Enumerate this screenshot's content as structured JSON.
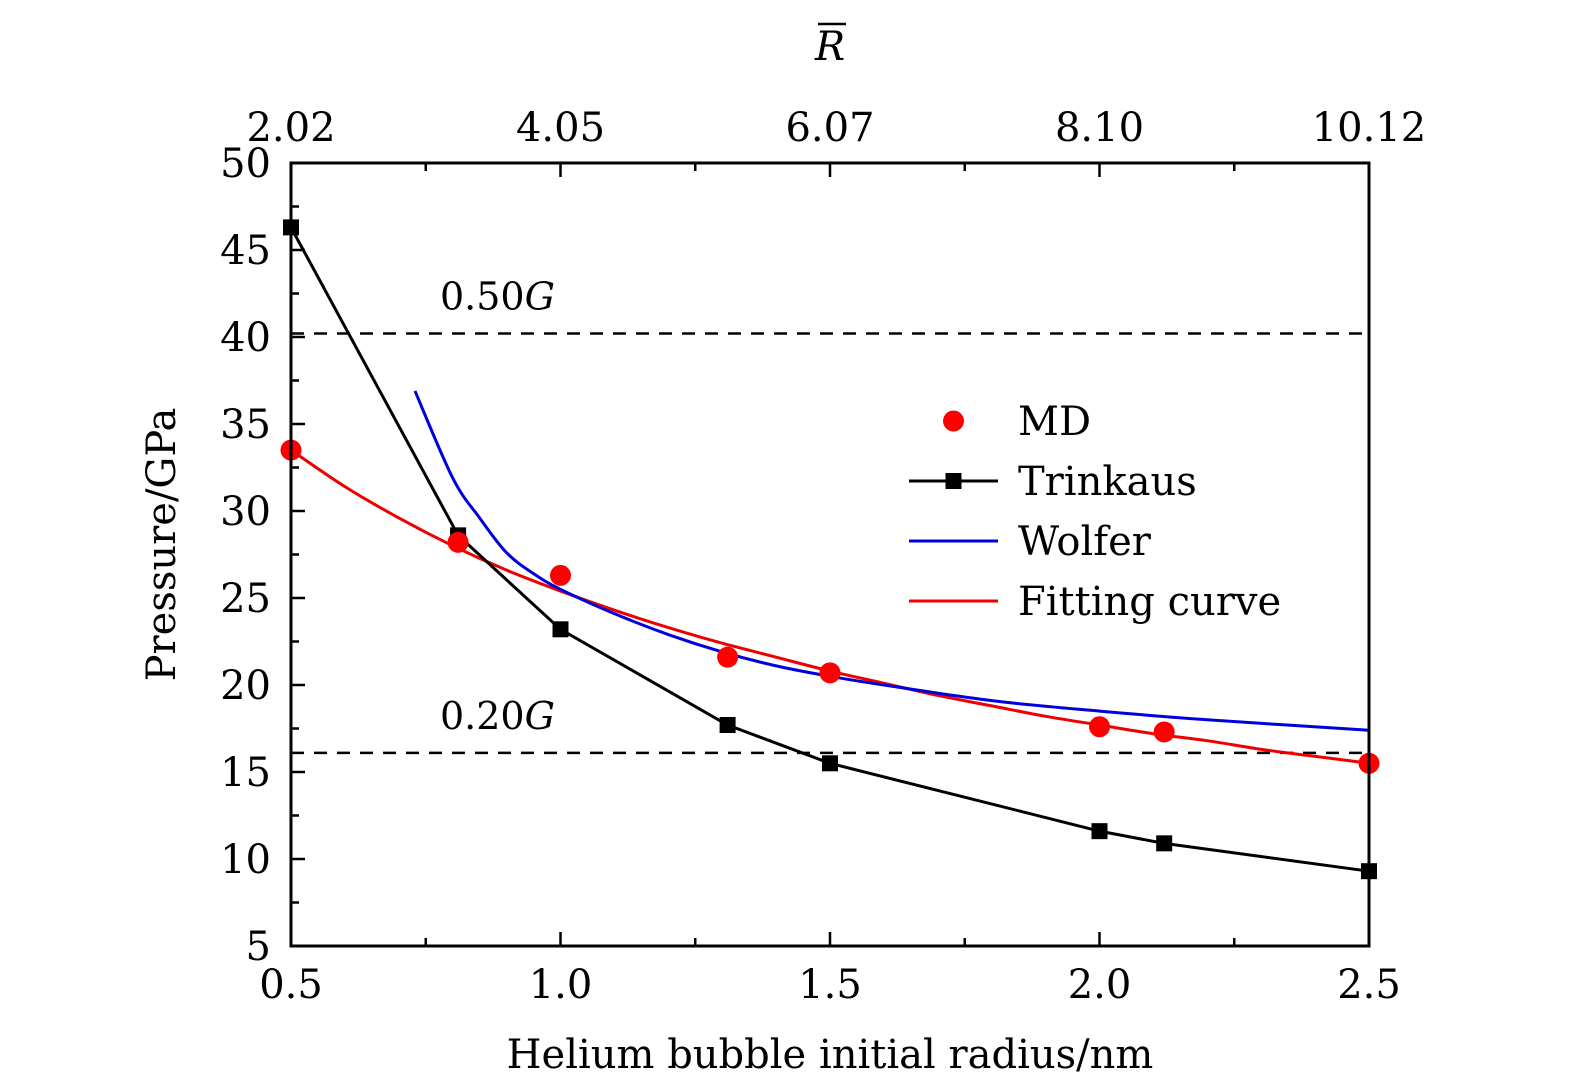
{
  "chart_data": {
    "type": "line",
    "title": "",
    "xlabel": "Helium bubble initial radius/nm",
    "ylabel": "Pressure/GPa",
    "top_xlabel": "R̄",
    "xlim": [
      0.5,
      2.5
    ],
    "ylim": [
      5,
      50
    ],
    "grid": false,
    "x_ticks": [
      0.5,
      1.0,
      1.5,
      2.0,
      2.5
    ],
    "x_tick_labels": [
      "0.5",
      "1.0",
      "1.5",
      "2.0",
      "2.5"
    ],
    "x_minor_ticks": [
      0.75,
      1.25,
      1.75,
      2.25
    ],
    "y_ticks": [
      5,
      10,
      15,
      20,
      25,
      30,
      35,
      40,
      45,
      50
    ],
    "y_tick_labels": [
      "5",
      "10",
      "15",
      "20",
      "25",
      "30",
      "35",
      "40",
      "45",
      "50"
    ],
    "y_minor_ticks": [
      7.5,
      12.5,
      17.5,
      22.5,
      27.5,
      32.5,
      37.5,
      42.5,
      47.5
    ],
    "top_ticks": [
      0.5,
      1.0,
      1.5,
      2.0,
      2.5
    ],
    "top_tick_labels": [
      "2.02",
      "4.05",
      "6.07",
      "8.10",
      "10.12"
    ],
    "legend_position": "center-right",
    "series": [
      {
        "name": "MD",
        "style": "markers",
        "marker": "circle",
        "color": "#ff0000",
        "x": [
          0.5,
          0.81,
          1.0,
          1.31,
          1.5,
          2.0,
          2.12,
          2.5
        ],
        "y": [
          33.5,
          28.2,
          26.3,
          21.6,
          20.7,
          17.6,
          17.3,
          15.5
        ]
      },
      {
        "name": "Trinkaus",
        "style": "line-markers",
        "marker": "square",
        "color": "#000000",
        "x": [
          0.5,
          0.81,
          1.0,
          1.31,
          1.5,
          2.0,
          2.12,
          2.5
        ],
        "y": [
          46.3,
          28.6,
          23.2,
          17.7,
          15.5,
          11.6,
          10.9,
          9.3
        ]
      },
      {
        "name": "Wolfer",
        "style": "line",
        "color": "#0000dd",
        "x": [
          0.73,
          0.8,
          0.85,
          0.9,
          0.95,
          1.0,
          1.1,
          1.2,
          1.3,
          1.4,
          1.5,
          1.6,
          1.8,
          2.0,
          2.2,
          2.5
        ],
        "y": [
          36.9,
          31.9,
          29.6,
          27.6,
          26.4,
          25.5,
          24.1,
          22.9,
          21.9,
          21.1,
          20.5,
          20.0,
          19.1,
          18.5,
          18.0,
          17.4
        ]
      },
      {
        "name": "Fitting curve",
        "style": "line",
        "color": "#ee0000",
        "x": [
          0.5,
          0.6,
          0.7,
          0.8,
          0.9,
          1.0,
          1.1,
          1.2,
          1.3,
          1.4,
          1.5,
          1.6,
          1.7,
          1.8,
          1.9,
          2.0,
          2.1,
          2.2,
          2.3,
          2.4,
          2.5
        ],
        "y": [
          33.5,
          31.4,
          29.6,
          28.0,
          26.6,
          25.4,
          24.3,
          23.3,
          22.4,
          21.6,
          20.8,
          20.1,
          19.4,
          18.8,
          18.2,
          17.7,
          17.2,
          16.8,
          16.3,
          15.9,
          15.5
        ]
      }
    ],
    "reference_lines": [
      {
        "label": "0.50G",
        "y": 40.2,
        "style": "dashed"
      },
      {
        "label": "0.20G",
        "y": 16.1,
        "style": "dashed"
      }
    ]
  }
}
